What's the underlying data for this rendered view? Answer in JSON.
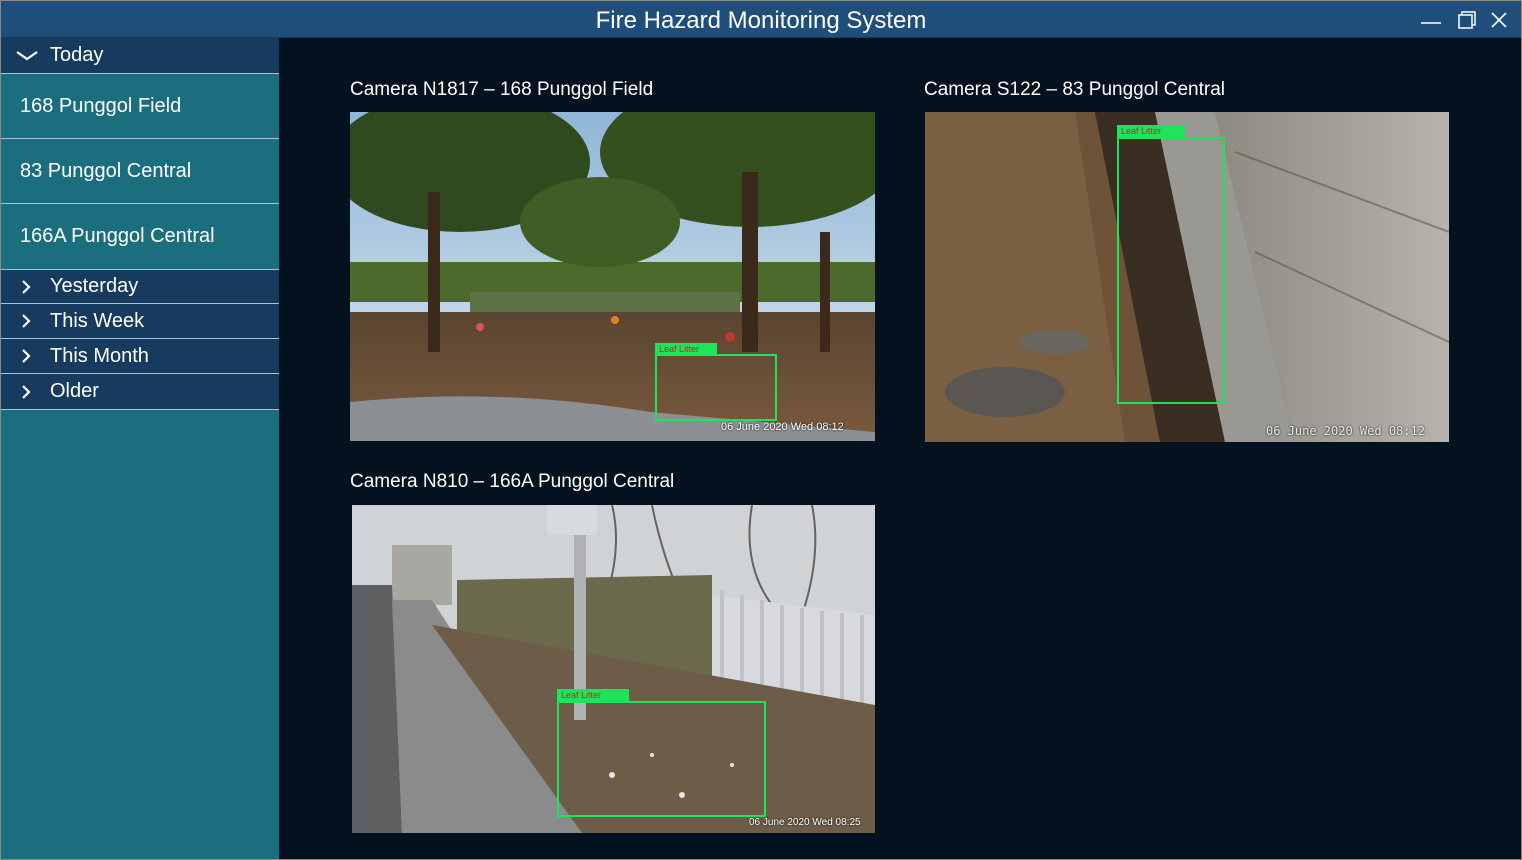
{
  "window": {
    "title": "Fire Hazard Monitoring System",
    "controls": [
      "minimize-icon",
      "maximize-icon",
      "close-icon"
    ]
  },
  "sidebar": {
    "today": {
      "label": "Today",
      "icon": "chevron-down-icon",
      "items": [
        {
          "label": "168 Punggol Field"
        },
        {
          "label": "83 Punggol Central"
        },
        {
          "label": "166A Punggol Central"
        }
      ]
    },
    "sections": [
      {
        "label": "Yesterday",
        "icon": "chevron-right-icon"
      },
      {
        "label": "This Week",
        "icon": "chevron-right-icon"
      },
      {
        "label": "This Month",
        "icon": "chevron-right-icon"
      },
      {
        "label": "Older",
        "icon": "chevron-right-icon"
      }
    ]
  },
  "cameras": [
    {
      "title": "Camera N1817 – 168 Punggol Field",
      "detection_label": "Leaf Litter",
      "timestamp": "06 June 2020 Wed 08:12"
    },
    {
      "title": "Camera S122 – 83 Punggol Central",
      "detection_label": "Leaf Litter",
      "timestamp": "06 June 2020 Wed 08:12"
    },
    {
      "title": "Camera N810 – 166A Punggol Central",
      "detection_label": "Leaf Litter",
      "timestamp": "06 June 2020 Wed 08:25"
    }
  ],
  "colors": {
    "titlebar": "#1e4e79",
    "sidebar": "#1b6e7e",
    "section_header": "#173b5f",
    "main_bg": "#04121f",
    "detection": "#1de45a",
    "detection_text": "#e0162b"
  }
}
